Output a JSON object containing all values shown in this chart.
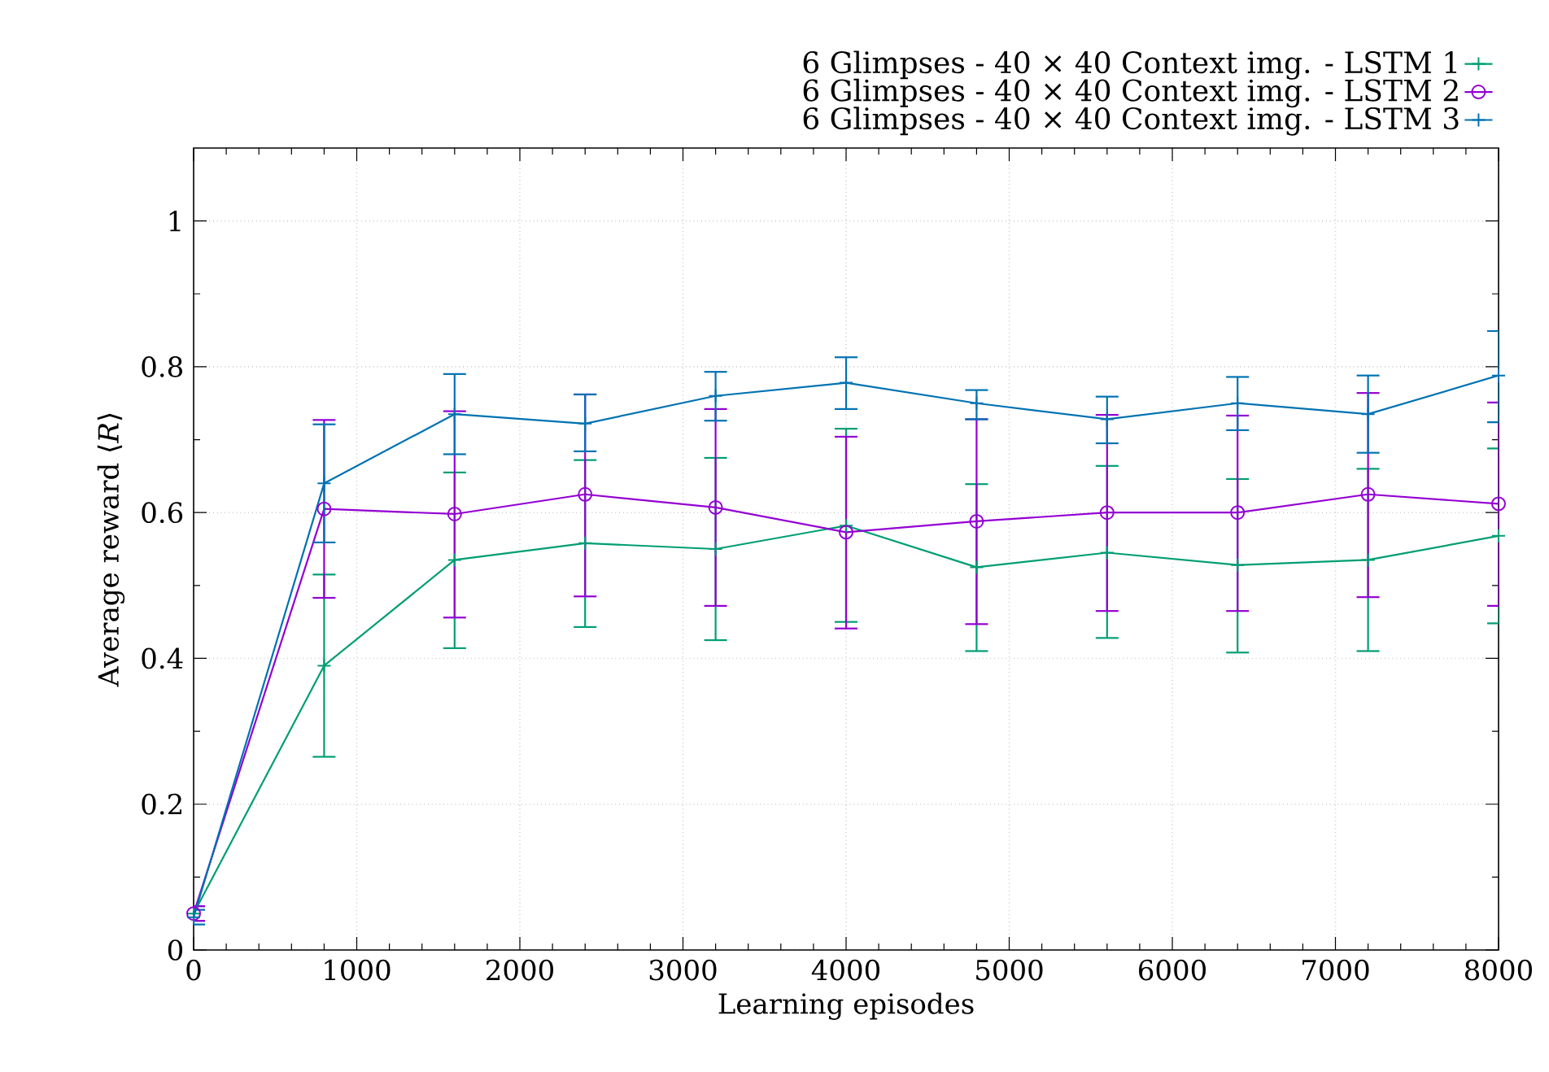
{
  "chart_data": {
    "type": "line",
    "xlabel": "Learning episodes",
    "ylabel": "Average reward ⟨*R*⟩",
    "x": [
      0,
      800,
      1600,
      2400,
      3200,
      4000,
      4800,
      5600,
      6400,
      7200,
      8000
    ],
    "series": [
      {
        "name": "6 Glimpses - 40 × 40 Context img. - LSTM 1",
        "color": "#009e73",
        "marker": "cross",
        "values": [
          0.05,
          0.39,
          0.535,
          0.558,
          0.55,
          0.582,
          0.525,
          0.545,
          0.528,
          0.535,
          0.568
        ],
        "errors": [
          [
            0.04,
            0.06
          ],
          [
            0.265,
            0.515
          ],
          [
            0.414,
            0.655
          ],
          [
            0.443,
            0.672
          ],
          [
            0.425,
            0.675
          ],
          [
            0.45,
            0.715
          ],
          [
            0.41,
            0.639
          ],
          [
            0.428,
            0.664
          ],
          [
            0.408,
            0.646
          ],
          [
            0.41,
            0.66
          ],
          [
            0.448,
            0.688
          ]
        ]
      },
      {
        "name": "6 Glimpses - 40 × 40 Context img. - LSTM 2",
        "color": "#9400d3",
        "marker": "circle",
        "values": [
          0.05,
          0.605,
          0.598,
          0.625,
          0.607,
          0.573,
          0.588,
          0.6,
          0.6,
          0.625,
          0.612
        ],
        "errors": [
          [
            0.04,
            0.06
          ],
          [
            0.483,
            0.727
          ],
          [
            0.456,
            0.739
          ],
          [
            0.485,
            0.762
          ],
          [
            0.472,
            0.742
          ],
          [
            0.441,
            0.704
          ],
          [
            0.447,
            0.728
          ],
          [
            0.465,
            0.734
          ],
          [
            0.465,
            0.733
          ],
          [
            0.484,
            0.764
          ],
          [
            0.472,
            0.751
          ]
        ]
      },
      {
        "name": "6 Glimpses - 40 × 40 Context img. - LSTM 3",
        "color": "#0072b2",
        "marker": "cross",
        "values": [
          0.045,
          0.64,
          0.735,
          0.722,
          0.76,
          0.778,
          0.75,
          0.728,
          0.75,
          0.735,
          0.788
        ],
        "errors": [
          [
            0.035,
            0.055
          ],
          [
            0.559,
            0.721
          ],
          [
            0.68,
            0.79
          ],
          [
            0.684,
            0.762
          ],
          [
            0.726,
            0.793
          ],
          [
            0.742,
            0.813
          ],
          [
            0.728,
            0.768
          ],
          [
            0.695,
            0.759
          ],
          [
            0.713,
            0.786
          ],
          [
            0.682,
            0.788
          ],
          [
            0.724,
            0.849
          ]
        ]
      }
    ],
    "xlim": [
      0,
      8000
    ],
    "ylim": [
      0,
      1.1
    ],
    "xticks": [
      0,
      1000,
      2000,
      3000,
      4000,
      5000,
      6000,
      7000,
      8000
    ],
    "yticks": [
      0,
      0.2,
      0.4,
      0.6,
      0.8,
      1
    ],
    "grid": true,
    "legend": "top",
    "line_style": "solid"
  }
}
